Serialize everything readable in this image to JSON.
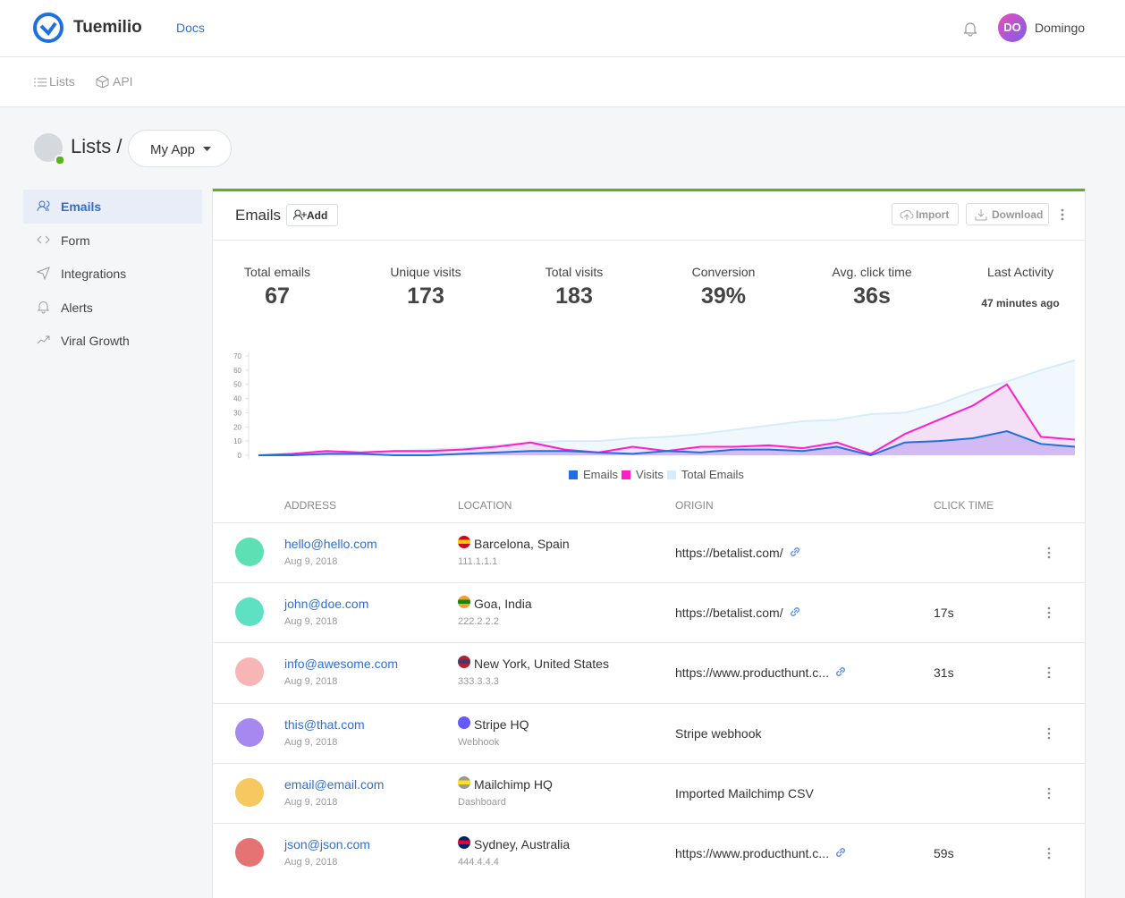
{
  "header": {
    "logo": "Tuemilio",
    "docs": "Docs",
    "avatar_initials": "DO",
    "user": "Domingo"
  },
  "subnav": [
    "Lists",
    "API"
  ],
  "page": {
    "title": "Lists /",
    "app": "My App"
  },
  "sidebar": [
    "Emails",
    "Form",
    "Integrations",
    "Alerts",
    "Viral Growth"
  ],
  "panel": {
    "title": "Emails",
    "add": "Add",
    "import": "Import",
    "download": "Download"
  },
  "stats": [
    {
      "label": "Total emails",
      "value": "67"
    },
    {
      "label": "Unique visits",
      "value": "173"
    },
    {
      "label": "Total visits",
      "value": "183"
    },
    {
      "label": "Conversion",
      "value": "39%"
    },
    {
      "label": "Avg. click time",
      "value": "36s"
    },
    {
      "label": "Last Activity",
      "value": "47 minutes ago"
    }
  ],
  "chart": {
    "type": "line",
    "ylim": [
      0,
      70
    ],
    "yticks": [
      0,
      10,
      20,
      30,
      40,
      50,
      60,
      70
    ],
    "series": [
      {
        "name": "Emails",
        "color": "#1f6fe0",
        "values": [
          0,
          0,
          1,
          1,
          0,
          0,
          1,
          2,
          3,
          3,
          2,
          1,
          3,
          2,
          4,
          4,
          3,
          6,
          0,
          9,
          10,
          12,
          17,
          8,
          6
        ]
      },
      {
        "name": "Visits",
        "color": "#ff1ec8",
        "values": [
          0,
          1,
          3,
          2,
          3,
          3,
          4,
          6,
          9,
          4,
          2,
          6,
          3,
          6,
          6,
          7,
          5,
          9,
          1,
          15,
          25,
          35,
          50,
          13,
          11
        ]
      },
      {
        "name": "Total Emails",
        "color": "#d6ecfa",
        "values": [
          0,
          1,
          2,
          2,
          3,
          4,
          5,
          7,
          9,
          10,
          10,
          12,
          13,
          15,
          18,
          21,
          24,
          25,
          29,
          30,
          36,
          45,
          52,
          60,
          67
        ]
      }
    ]
  },
  "table": {
    "columns": [
      "ADDRESS",
      "LOCATION",
      "ORIGIN",
      "CLICK TIME"
    ],
    "rows": [
      {
        "email": "hello@hello.com",
        "date": "Aug 9, 2018",
        "location": "Barcelona, Spain",
        "detail": "111.1.1.1",
        "origin": "https://betalist.com/"
      },
      {
        "email": "john@doe.com",
        "date": "Aug 9, 2018",
        "location": "Goa, India",
        "detail": "222.2.2.2",
        "origin": "https://betalist.com/",
        "click_time": "17s"
      },
      {
        "email": "info@awesome.com",
        "date": "Aug 9, 2018",
        "location": "New York, United States",
        "detail": "333.3.3.3",
        "origin": "https://www.producthunt.c...",
        "click_time": "31s"
      },
      {
        "email": "this@that.com",
        "date": "Aug 9, 2018",
        "location": "Stripe HQ",
        "detail": "Webhook",
        "origin": "Stripe webhook"
      },
      {
        "email": "email@email.com",
        "date": "Aug 9, 2018",
        "location": "Mailchimp HQ",
        "detail": "Dashboard",
        "origin": "Imported Mailchimp CSV"
      },
      {
        "email": "json@json.com",
        "date": "Aug 9, 2018",
        "location": "Sydney, Australia",
        "detail": "444.4.4.4",
        "origin": "https://www.producthunt.c...",
        "click_time": "59s"
      }
    ]
  }
}
